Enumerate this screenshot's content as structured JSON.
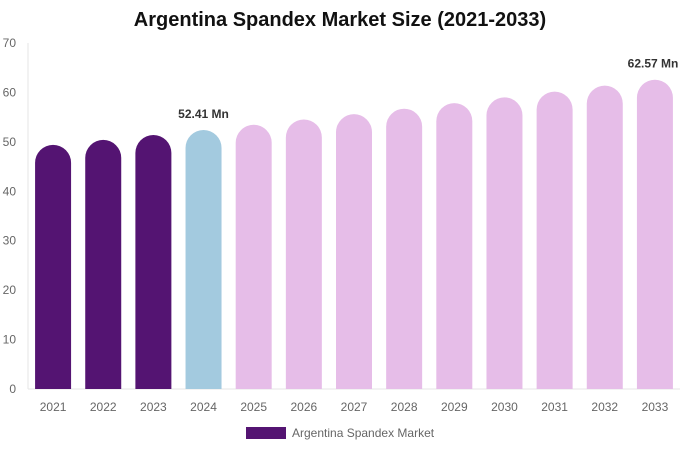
{
  "chart_data": {
    "type": "bar",
    "title": "Argentina Spandex Market Size (2021-2033)",
    "categories": [
      "2021",
      "2022",
      "2023",
      "2024",
      "2025",
      "2026",
      "2027",
      "2028",
      "2029",
      "2030",
      "2031",
      "2032",
      "2033"
    ],
    "series": [
      {
        "name": "Argentina Spandex Market",
        "values": [
          49.4,
          50.39,
          51.39,
          52.41,
          53.45,
          54.52,
          55.6,
          56.71,
          57.84,
          58.99,
          60.17,
          61.37,
          62.57
        ]
      }
    ],
    "ylim": [
      0,
      70
    ],
    "yticks": [
      0,
      10,
      20,
      30,
      40,
      50,
      60,
      70
    ],
    "grid": false,
    "legend": "bottom",
    "data_labels": [
      {
        "category": "2024",
        "text": "52.41 Mn"
      },
      {
        "category": "2033",
        "text": "62.57 Mn"
      }
    ],
    "colors": {
      "historical": "#541472",
      "base": "#a3cadf",
      "forecast": "#e6bde8"
    }
  }
}
